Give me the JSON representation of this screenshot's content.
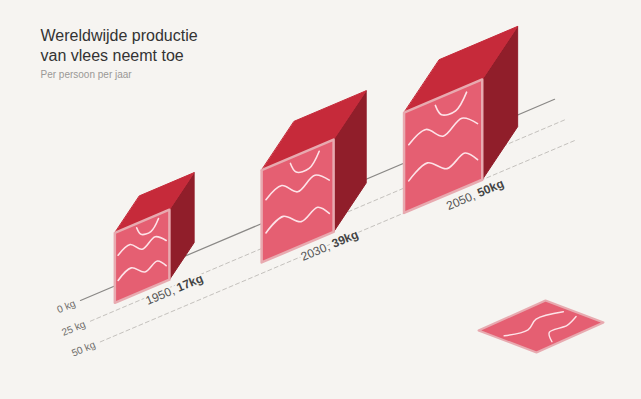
{
  "chart_data": {
    "type": "bar",
    "title": "Wereldwijde productie van vlees neemt toe",
    "subtitle": "Per persoon per jaar",
    "categories": [
      "1950,",
      "2030,",
      "2050,"
    ],
    "values": [
      17,
      39,
      50
    ],
    "value_labels": [
      "17kg",
      "39kg",
      "50kg"
    ],
    "data_labels": true,
    "color": "#c62a3a",
    "ylim": [
      0,
      50
    ],
    "yticks": [
      {
        "value": 0,
        "label": "0 kg"
      },
      {
        "value": 25,
        "label": "25 kg"
      },
      {
        "value": 50,
        "label": "50 kg"
      }
    ],
    "grid": true
  }
}
